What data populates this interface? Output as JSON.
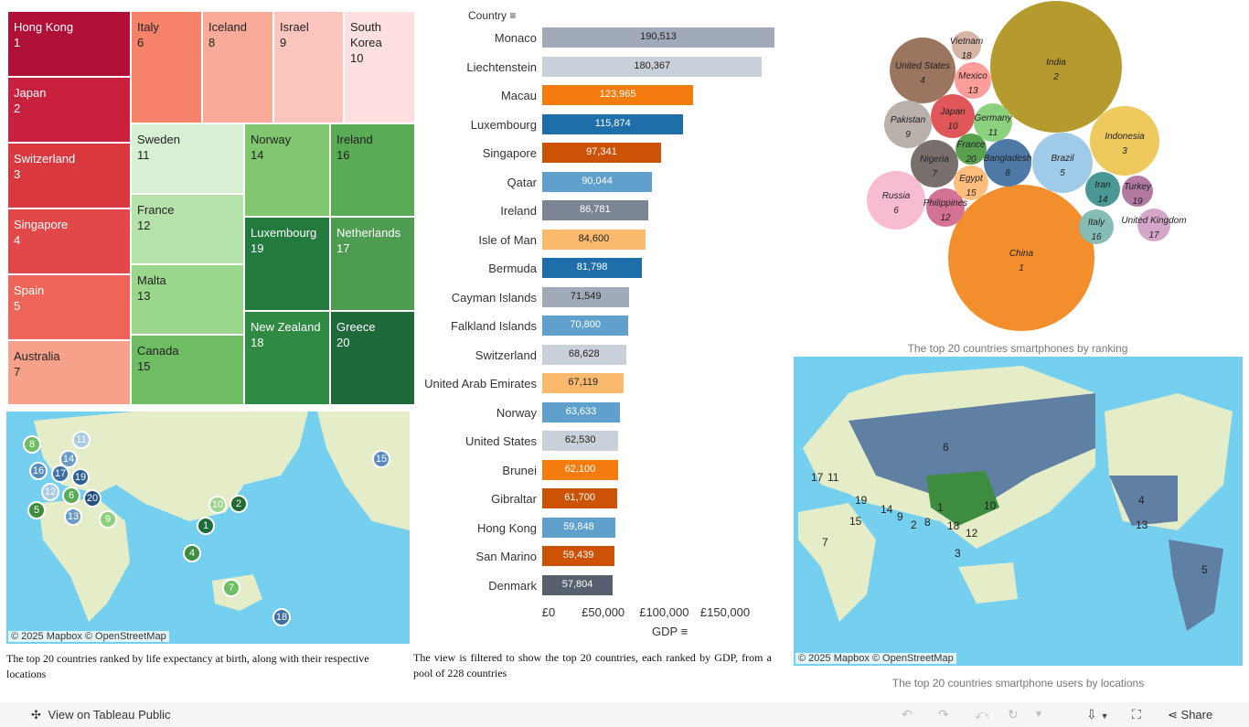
{
  "treemap": {
    "items": [
      {
        "name": "Hong Kong",
        "rank": "1",
        "color": "#b01038",
        "text": "#fff"
      },
      {
        "name": "Japan",
        "rank": "2",
        "color": "#c8203d",
        "text": "#fff"
      },
      {
        "name": "Switzerland",
        "rank": "3",
        "color": "#d9383f",
        "text": "#fff"
      },
      {
        "name": "Singapore",
        "rank": "4",
        "color": "#e2474a",
        "text": "#fff"
      },
      {
        "name": "Spain",
        "rank": "5",
        "color": "#ee6458",
        "text": "#fff"
      },
      {
        "name": "Australia",
        "rank": "7",
        "color": "#f7a08a",
        "text": "#222"
      },
      {
        "name": "Italy",
        "rank": "6",
        "color": "#f6826a",
        "text": "#222"
      },
      {
        "name": "Iceland",
        "rank": "8",
        "color": "#f9aa98",
        "text": "#222"
      },
      {
        "name": "Israel",
        "rank": "9",
        "color": "#fcc5bd",
        "text": "#222"
      },
      {
        "name": "South Korea",
        "rank": "10",
        "color": "#fde0df",
        "text": "#222"
      },
      {
        "name": "Sweden",
        "rank": "11",
        "color": "#d8efd4",
        "text": "#222"
      },
      {
        "name": "France",
        "rank": "12",
        "color": "#b6e2ab",
        "text": "#222"
      },
      {
        "name": "Malta",
        "rank": "13",
        "color": "#9ad68b",
        "text": "#222"
      },
      {
        "name": "Canada",
        "rank": "15",
        "color": "#6fbd63",
        "text": "#222"
      },
      {
        "name": "Norway",
        "rank": "14",
        "color": "#80c76f",
        "text": "#222"
      },
      {
        "name": "Luxembourg",
        "rank": "19",
        "color": "#227a3e",
        "text": "#fff"
      },
      {
        "name": "New Zealand",
        "rank": "18",
        "color": "#2f8a43",
        "text": "#fff"
      },
      {
        "name": "Ireland",
        "rank": "16",
        "color": "#5aab55",
        "text": "#222"
      },
      {
        "name": "Netherlands",
        "rank": "17",
        "color": "#4e9b52",
        "text": "#fff"
      },
      {
        "name": "Greece",
        "rank": "20",
        "color": "#1f6a3a",
        "text": "#fff"
      }
    ]
  },
  "life_map": {
    "attribution": "© 2025 Mapbox  © OpenStreetMap",
    "caption": "The top 20 countries ranked by life expectancy at birth, along with their respective locations",
    "markers": [
      {
        "rank": "8",
        "color": "#6fbd63"
      },
      {
        "rank": "11",
        "color": "#a8cbe3"
      },
      {
        "rank": "14",
        "color": "#6b9bc5"
      },
      {
        "rank": "16",
        "color": "#5a8bbd"
      },
      {
        "rank": "17",
        "color": "#3e6fa3"
      },
      {
        "rank": "19",
        "color": "#2f5f93"
      },
      {
        "rank": "12",
        "color": "#a8cbe3"
      },
      {
        "rank": "6",
        "color": "#5aab55"
      },
      {
        "rank": "5",
        "color": "#3e8c40"
      },
      {
        "rank": "20",
        "color": "#234f80"
      },
      {
        "rank": "13",
        "color": "#6b9bc5"
      },
      {
        "rank": "9",
        "color": "#8fd07a"
      },
      {
        "rank": "10",
        "color": "#9ad68b"
      },
      {
        "rank": "2",
        "color": "#236b35"
      },
      {
        "rank": "1",
        "color": "#1f6a3a"
      },
      {
        "rank": "4",
        "color": "#3e8c40"
      },
      {
        "rank": "7",
        "color": "#6fbd63"
      },
      {
        "rank": "18",
        "color": "#3e6fa3"
      },
      {
        "rank": "15",
        "color": "#5a8bbd"
      }
    ]
  },
  "gdp_chart": {
    "chart_data": {
      "type": "bar",
      "orientation": "horizontal",
      "ylabel": "Country",
      "xlabel": "GDP",
      "xlim": [
        0,
        190513
      ],
      "x_ticks": [
        "£0",
        "£50,000",
        "£100,000",
        "£150,000"
      ],
      "categories": [
        "Monaco",
        "Liechtenstein",
        "Macau",
        "Luxembourg",
        "Singapore",
        "Qatar",
        "Ireland",
        "Isle of Man",
        "Bermuda",
        "Cayman Islands",
        "Falkland Islands",
        "Switzerland",
        "United Arab Emirates",
        "Norway",
        "United States",
        "Brunei",
        "Gibraltar",
        "Hong Kong",
        "San Marino",
        "Denmark"
      ],
      "values": [
        190513,
        180367,
        123965,
        115874,
        97341,
        90044,
        86781,
        84600,
        81798,
        71549,
        70800,
        68628,
        67119,
        63633,
        62530,
        62100,
        61700,
        59848,
        59439,
        57804
      ],
      "value_labels": [
        "190,513",
        "180,367",
        "123,965",
        "115,874",
        "97,341",
        "90,044",
        "86,781",
        "84,600",
        "81,798",
        "71,549",
        "70,800",
        "68,628",
        "67,119",
        "63,633",
        "62,530",
        "62,100",
        "61,700",
        "59,848",
        "59,439",
        "57,804"
      ],
      "colors": [
        "#a0aab8",
        "#c9d0da",
        "#f47c0f",
        "#1f6ea9",
        "#cc5206",
        "#5fa0cc",
        "#7b8594",
        "#fbb96e",
        "#1f6ea9",
        "#a0aab8",
        "#5fa0cc",
        "#c9d0da",
        "#fbb96e",
        "#5fa0cc",
        "#c9d0da",
        "#f47c0f",
        "#cc5206",
        "#5fa0cc",
        "#cc5206",
        "#57606e"
      ]
    },
    "caption": "The view is filtered to show the top 20 countries, each ranked by GDP, from a pool of 228 countries"
  },
  "bubbles": {
    "caption": "The top 20 countries smartphones by ranking",
    "items": [
      {
        "name": "China",
        "rank": "1",
        "color": "#f28e2b"
      },
      {
        "name": "India",
        "rank": "2",
        "color": "#b59a2e"
      },
      {
        "name": "Indonesia",
        "rank": "3",
        "color": "#edc95e"
      },
      {
        "name": "United States",
        "rank": "4",
        "color": "#9c7560"
      },
      {
        "name": "Brazil",
        "rank": "5",
        "color": "#a0cbe8"
      },
      {
        "name": "Russia",
        "rank": "6",
        "color": "#f8bcd2"
      },
      {
        "name": "Nigeria",
        "rank": "7",
        "color": "#79706e"
      },
      {
        "name": "Bangladesh",
        "rank": "8",
        "color": "#4e79a7"
      },
      {
        "name": "Pakistan",
        "rank": "9",
        "color": "#bab0ac"
      },
      {
        "name": "Japan",
        "rank": "10",
        "color": "#e15759"
      },
      {
        "name": "Germany",
        "rank": "11",
        "color": "#8cd17d"
      },
      {
        "name": "Philippines",
        "rank": "12",
        "color": "#d37295"
      },
      {
        "name": "Mexico",
        "rank": "13",
        "color": "#ff9d9a"
      },
      {
        "name": "Iran",
        "rank": "14",
        "color": "#499894"
      },
      {
        "name": "Egypt",
        "rank": "15",
        "color": "#ffbe7d"
      },
      {
        "name": "Italy",
        "rank": "16",
        "color": "#86bcb6"
      },
      {
        "name": "United Kingdom",
        "rank": "17",
        "color": "#d4a6c8"
      },
      {
        "name": "Vietnam",
        "rank": "18",
        "color": "#d7b5a6"
      },
      {
        "name": "Turkey",
        "rank": "19",
        "color": "#b07aa1"
      },
      {
        "name": "France",
        "rank": "20",
        "color": "#59a14f"
      }
    ]
  },
  "users_map": {
    "attribution": "© 2025 Mapbox  © OpenStreetMap",
    "caption": "The top 20 countries smartphone users by locations",
    "labels": [
      "6",
      "17",
      "11",
      "19",
      "14",
      "15",
      "9",
      "1",
      "2",
      "8",
      "18",
      "10",
      "12",
      "3",
      "7",
      "4",
      "13",
      "5"
    ]
  },
  "toolbar": {
    "view_label": "View on Tableau Public",
    "share_label": "Share"
  }
}
